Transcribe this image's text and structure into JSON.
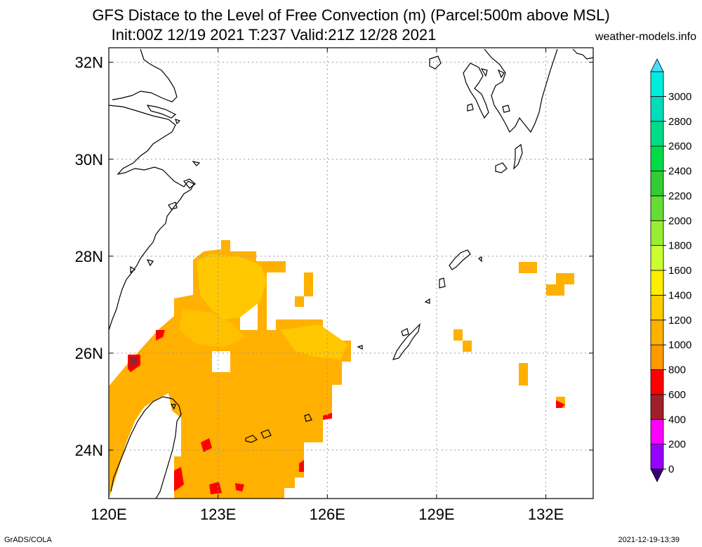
{
  "header": {
    "title_line1": "GFS Distace to the Level of Free Convection (m) (Parcel:500m above MSL)",
    "title_line2": "Init:00Z 12/19 2021 T:237 Valid:21Z 12/28 2021",
    "site": "weather-models.info"
  },
  "footer": {
    "credit": "GrADS/COLA",
    "timestamp": "2021-12-19-13:39"
  },
  "map": {
    "lon_range": [
      120,
      133.3
    ],
    "lat_range": [
      23,
      32.3
    ],
    "lon_ticks": [
      {
        "value": 120,
        "label": "120E"
      },
      {
        "value": 123,
        "label": "123E"
      },
      {
        "value": 126,
        "label": "126E"
      },
      {
        "value": 129,
        "label": "129E"
      },
      {
        "value": 132,
        "label": "132E"
      }
    ],
    "lat_ticks": [
      {
        "value": 24,
        "label": "24N"
      },
      {
        "value": 26,
        "label": "26N"
      },
      {
        "value": 28,
        "label": "28N"
      },
      {
        "value": 30,
        "label": "30N"
      },
      {
        "value": 32,
        "label": "32N"
      }
    ]
  },
  "colorbar": {
    "levels": [
      "0",
      "200",
      "400",
      "600",
      "800",
      "1000",
      "1200",
      "1400",
      "1600",
      "1800",
      "2000",
      "2200",
      "2400",
      "2600",
      "2800",
      "3000"
    ],
    "colors": [
      "#9600fe",
      "#ff00ff",
      "#a0202a",
      "#ff0000",
      "#ff9a00",
      "#ffb000",
      "#ffcc00",
      "#ffee00",
      "#ccff33",
      "#99ee33",
      "#66dd33",
      "#33cc33",
      "#00dd44",
      "#00dd88",
      "#00ddbb",
      "#00eedd"
    ],
    "bottom_color": "#3a007a",
    "top_color": "#44ddff"
  },
  "colors": {
    "field_main": "#ffb000",
    "field_light": "#ffc800",
    "field_red": "#ff0000",
    "field_darkred": "#a0202a",
    "coast": "#000000",
    "grid": "#999999"
  }
}
